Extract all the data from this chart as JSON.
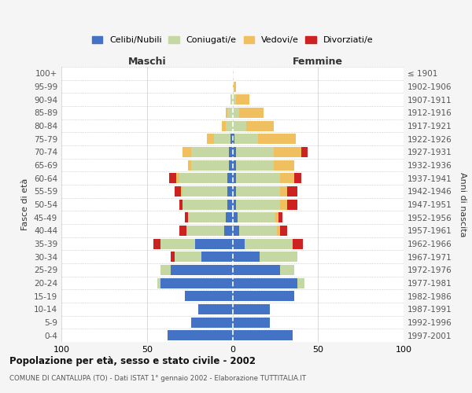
{
  "age_groups": [
    "0-4",
    "5-9",
    "10-14",
    "15-19",
    "20-24",
    "25-29",
    "30-34",
    "35-39",
    "40-44",
    "45-49",
    "50-54",
    "55-59",
    "60-64",
    "65-69",
    "70-74",
    "75-79",
    "80-84",
    "85-89",
    "90-94",
    "95-99",
    "100+"
  ],
  "birth_years": [
    "1997-2001",
    "1992-1996",
    "1987-1991",
    "1982-1986",
    "1977-1981",
    "1972-1976",
    "1967-1971",
    "1962-1966",
    "1957-1961",
    "1952-1956",
    "1947-1951",
    "1942-1946",
    "1937-1941",
    "1932-1936",
    "1927-1931",
    "1922-1926",
    "1917-1921",
    "1912-1916",
    "1907-1911",
    "1902-1906",
    "≤ 1901"
  ],
  "colors": {
    "celibi": "#4472c4",
    "coniugati": "#c5d8a4",
    "vedovi": "#f0c060",
    "divorziati": "#cc2222"
  },
  "males": {
    "celibi": [
      38,
      24,
      20,
      28,
      42,
      36,
      18,
      22,
      5,
      4,
      3,
      3,
      3,
      2,
      2,
      1,
      0,
      0,
      0,
      0,
      0
    ],
    "coniugati": [
      0,
      0,
      0,
      0,
      2,
      6,
      16,
      20,
      22,
      22,
      26,
      26,
      28,
      22,
      22,
      10,
      4,
      3,
      1,
      0,
      0
    ],
    "vedovi": [
      0,
      0,
      0,
      0,
      0,
      0,
      0,
      0,
      0,
      0,
      0,
      1,
      2,
      2,
      5,
      4,
      2,
      1,
      0,
      0,
      0
    ],
    "divorziati": [
      0,
      0,
      0,
      0,
      0,
      0,
      2,
      4,
      4,
      2,
      2,
      4,
      4,
      0,
      0,
      0,
      0,
      0,
      0,
      0,
      0
    ]
  },
  "females": {
    "nubili": [
      35,
      22,
      22,
      36,
      38,
      28,
      16,
      7,
      4,
      3,
      2,
      2,
      2,
      2,
      2,
      1,
      0,
      0,
      0,
      0,
      0
    ],
    "coniugate": [
      0,
      0,
      0,
      0,
      4,
      8,
      22,
      28,
      22,
      22,
      26,
      26,
      26,
      22,
      22,
      14,
      8,
      4,
      2,
      0,
      0
    ],
    "vedove": [
      0,
      0,
      0,
      0,
      0,
      0,
      0,
      0,
      2,
      2,
      4,
      4,
      8,
      12,
      16,
      22,
      16,
      14,
      8,
      2,
      0
    ],
    "divorziate": [
      0,
      0,
      0,
      0,
      0,
      0,
      0,
      6,
      4,
      2,
      6,
      6,
      4,
      0,
      4,
      0,
      0,
      0,
      0,
      0,
      0
    ]
  },
  "xlim": 100,
  "title": "Popolazione per età, sesso e stato civile - 2002",
  "subtitle": "COMUNE DI CANTALUPA (TO) - Dati ISTAT 1° gennaio 2002 - Elaborazione TUTTITALIA.IT",
  "xlabel_left": "Maschi",
  "xlabel_right": "Femmine",
  "ylabel_left": "Fasce di età",
  "ylabel_right": "Anni di nascita",
  "legend_labels": [
    "Celibi/Nubili",
    "Coniugati/e",
    "Vedovi/e",
    "Divorziati/e"
  ],
  "bg_color": "#f5f5f5",
  "plot_bg_color": "#ffffff"
}
